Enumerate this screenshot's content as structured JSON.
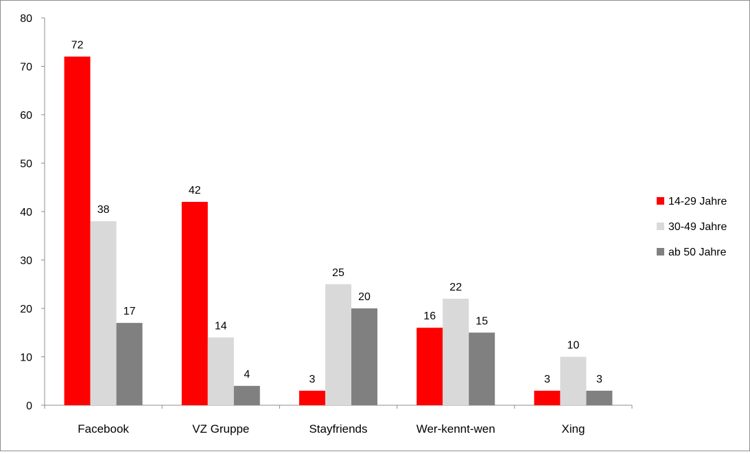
{
  "chart_data": {
    "type": "bar",
    "title": "",
    "xlabel": "",
    "ylabel": "",
    "ylim": [
      0,
      80
    ],
    "yticks": [
      0,
      10,
      20,
      30,
      40,
      50,
      60,
      70,
      80
    ],
    "grid": false,
    "legend_position": "right",
    "categories": [
      "Facebook",
      "VZ Gruppe",
      "Stayfriends",
      "Wer-kennt-wen",
      "Xing"
    ],
    "series": [
      {
        "name": "14-29 Jahre",
        "color": "#ff0000",
        "values": [
          72,
          42,
          3,
          16,
          3
        ]
      },
      {
        "name": "30-49 Jahre",
        "color": "#d9d9d9",
        "values": [
          38,
          14,
          25,
          22,
          10
        ]
      },
      {
        "name": "ab 50 Jahre",
        "color": "#808080",
        "values": [
          17,
          4,
          20,
          15,
          3
        ]
      }
    ]
  }
}
